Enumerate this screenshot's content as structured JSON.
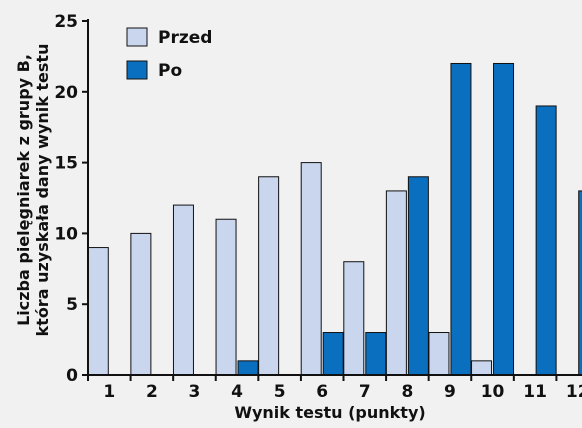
{
  "chart_data": {
    "type": "bar",
    "xlabel": "Wynik testu (punkty)",
    "ylabel": "Liczba pielęgniarek z grupy B,\nktóra uzyskała dany wynik testu",
    "ylim": [
      0,
      25
    ],
    "yticks": [
      "0",
      "5",
      "10",
      "15",
      "20",
      "25"
    ],
    "categories": [
      "1",
      "2",
      "3",
      "4",
      "5",
      "6",
      "7",
      "8",
      "9",
      "10",
      "11",
      "12"
    ],
    "series": [
      {
        "name": "Przed",
        "color": "#c9d6ee",
        "values": [
          9,
          10,
          12,
          11,
          14,
          15,
          8,
          13,
          3,
          1,
          0,
          0
        ]
      },
      {
        "name": "Po",
        "color": "#0a6fbf",
        "values": [
          0,
          0,
          0,
          1,
          0,
          3,
          3,
          14,
          22,
          22,
          19,
          13
        ]
      }
    ],
    "legend": "top-left",
    "grid": false
  }
}
